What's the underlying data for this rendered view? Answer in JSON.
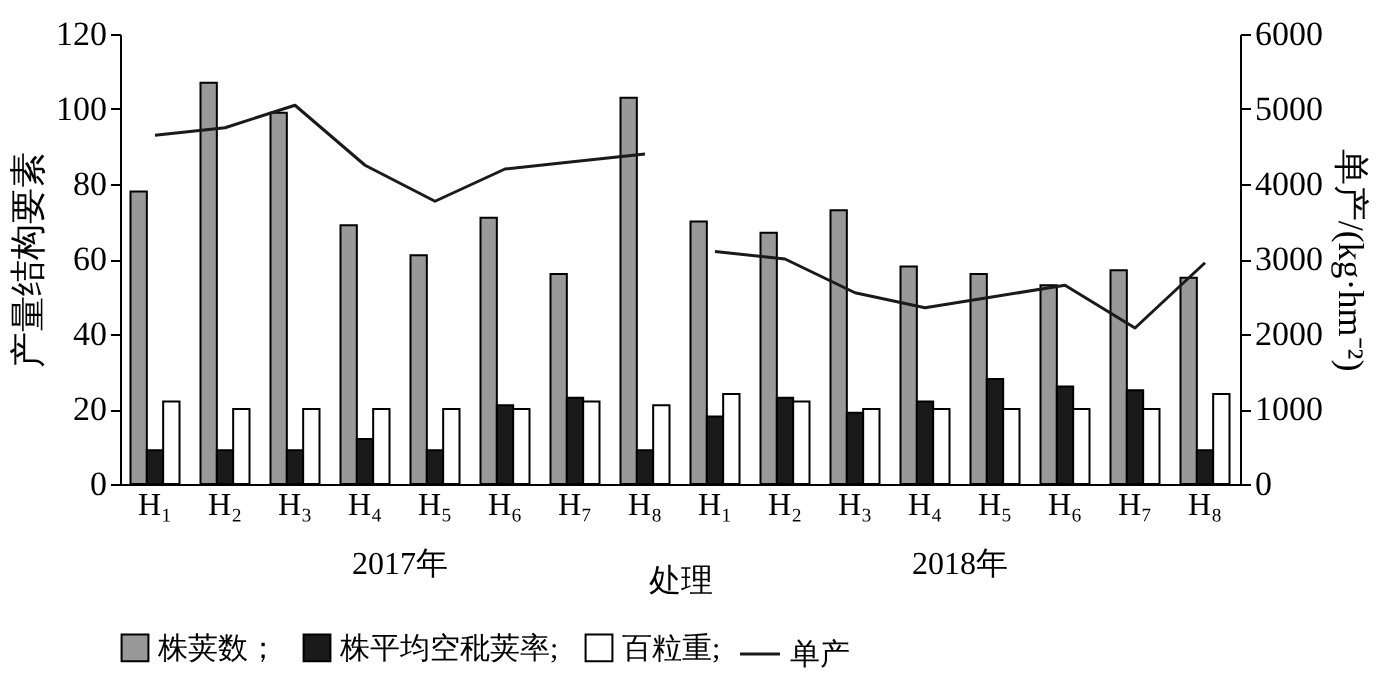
{
  "chart_data": {
    "type": "bar",
    "xlabel": "处理",
    "ylabel": "产量结构要素",
    "y2label": "单产/(kg·hm⁻²)",
    "categories": [
      "H₁",
      "H₂",
      "H₃",
      "H₄",
      "H₅",
      "H₆",
      "H₇",
      "H₈",
      "H₁",
      "H₂",
      "H₃",
      "H₄",
      "H₅",
      "H₆",
      "H₇",
      "H₈"
    ],
    "series": [
      {
        "name": "株荚数；",
        "color": "#999999",
        "values": [
          78,
          107,
          99,
          69,
          61,
          71,
          56,
          103,
          70,
          67,
          73,
          58,
          56,
          53,
          57,
          55
        ]
      },
      {
        "name": "株平均空秕荚率;",
        "color": "#1a1a1a",
        "values": [
          9,
          9,
          9,
          12,
          9,
          21,
          23,
          9,
          18,
          23,
          19,
          22,
          28,
          26,
          25,
          9
        ]
      },
      {
        "name": "百粒重;",
        "color": "#ffffff",
        "values": [
          22,
          20,
          20,
          20,
          20,
          20,
          22,
          21,
          24,
          22,
          20,
          20,
          20,
          20,
          20,
          24
        ]
      },
      {
        "name": "单产",
        "type": "line",
        "axis": "y2",
        "color": "#1a1a1a",
        "values": [
          4650,
          4750,
          5050,
          4250,
          3770,
          4200,
          4300,
          4400,
          null,
          null,
          null,
          null,
          null,
          null,
          null,
          null
        ]
      },
      {
        "type": "line",
        "axis": "y2",
        "color": "#1a1a1a",
        "values": [
          null,
          null,
          null,
          null,
          null,
          null,
          null,
          null,
          3100,
          3000,
          2550,
          2350,
          2500,
          2650,
          2080,
          2950
        ]
      }
    ],
    "ylim": [
      0,
      120
    ],
    "yticks": [
      0,
      20,
      40,
      60,
      80,
      100,
      120
    ],
    "y2lim": [
      0,
      6000
    ],
    "y2ticks": [
      0,
      1000,
      2000,
      3000,
      4000,
      5000,
      6000
    ],
    "annotations": [
      "2017年",
      "2018年"
    ],
    "grid": false,
    "legend": "bottom"
  }
}
